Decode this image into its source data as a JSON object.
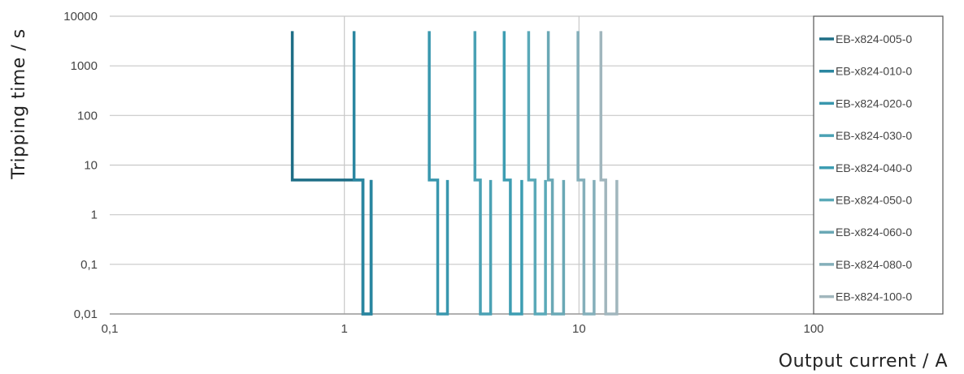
{
  "chart_data": {
    "type": "line",
    "xlabel": "Output current / A",
    "ylabel": "Tripping time / s",
    "x_scale": "log",
    "y_scale": "log",
    "xlim": [
      0.1,
      100
    ],
    "ylim": [
      0.01,
      10000
    ],
    "x_ticks": [
      {
        "value": 0.1,
        "label": "0,1"
      },
      {
        "value": 1,
        "label": "1"
      },
      {
        "value": 10,
        "label": "10"
      },
      {
        "value": 100,
        "label": "100"
      }
    ],
    "y_ticks": [
      {
        "value": 0.01,
        "label": "0,01"
      },
      {
        "value": 0.1,
        "label": "0,1"
      },
      {
        "value": 1,
        "label": "1"
      },
      {
        "value": 10,
        "label": "10"
      },
      {
        "value": 100,
        "label": "100"
      },
      {
        "value": 1000,
        "label": "1000"
      },
      {
        "value": 10000,
        "label": "10000"
      }
    ],
    "grid": true,
    "legend_position": "right",
    "series": [
      {
        "name": "EB-x824-005-0",
        "color": "#1e6e86",
        "points": [
          [
            0.6,
            5000
          ],
          [
            0.6,
            5
          ],
          [
            1.2,
            5
          ],
          [
            1.2,
            0.01
          ],
          [
            1.3,
            0.01
          ],
          [
            1.3,
            5
          ]
        ]
      },
      {
        "name": "EB-x824-010-0",
        "color": "#2a86a0",
        "points": [
          [
            1.1,
            5000
          ],
          [
            1.1,
            5
          ],
          [
            1.2,
            5
          ],
          [
            1.2,
            0.01
          ],
          [
            1.3,
            0.01
          ],
          [
            1.3,
            5
          ]
        ]
      },
      {
        "name": "EB-x824-020-0",
        "color": "#3997ae",
        "points": [
          [
            2.3,
            5000
          ],
          [
            2.3,
            5
          ],
          [
            2.5,
            5
          ],
          [
            2.5,
            0.01
          ],
          [
            2.75,
            0.01
          ],
          [
            2.75,
            5
          ]
        ]
      },
      {
        "name": "EB-x824-030-0",
        "color": "#4aa1b4",
        "points": [
          [
            3.6,
            5000
          ],
          [
            3.6,
            5
          ],
          [
            3.8,
            5
          ],
          [
            3.8,
            0.01
          ],
          [
            4.2,
            0.01
          ],
          [
            4.2,
            5
          ]
        ]
      },
      {
        "name": "EB-x824-040-0",
        "color": "#3d9db2",
        "points": [
          [
            4.8,
            5000
          ],
          [
            4.8,
            5
          ],
          [
            5.1,
            5
          ],
          [
            5.1,
            0.01
          ],
          [
            5.7,
            0.01
          ],
          [
            5.7,
            5
          ]
        ]
      },
      {
        "name": "EB-x824-050-0",
        "color": "#5aa9b8",
        "points": [
          [
            6.1,
            5000
          ],
          [
            6.1,
            5
          ],
          [
            6.5,
            5
          ],
          [
            6.5,
            0.01
          ],
          [
            7.2,
            0.01
          ],
          [
            7.2,
            5
          ]
        ]
      },
      {
        "name": "EB-x824-060-0",
        "color": "#6aa8b5",
        "points": [
          [
            7.4,
            5000
          ],
          [
            7.4,
            5
          ],
          [
            7.7,
            5
          ],
          [
            7.7,
            0.01
          ],
          [
            8.6,
            0.01
          ],
          [
            8.6,
            5
          ]
        ]
      },
      {
        "name": "EB-x824-080-0",
        "color": "#84afba",
        "points": [
          [
            9.9,
            5000
          ],
          [
            9.9,
            5
          ],
          [
            10.5,
            5
          ],
          [
            10.5,
            0.01
          ],
          [
            11.6,
            0.01
          ],
          [
            11.6,
            5
          ]
        ]
      },
      {
        "name": "EB-x824-100-0",
        "color": "#a1b6bd",
        "points": [
          [
            12.4,
            5000
          ],
          [
            12.4,
            5
          ],
          [
            13.0,
            5
          ],
          [
            13.0,
            0.01
          ],
          [
            14.5,
            0.01
          ],
          [
            14.5,
            5
          ]
        ]
      }
    ]
  }
}
